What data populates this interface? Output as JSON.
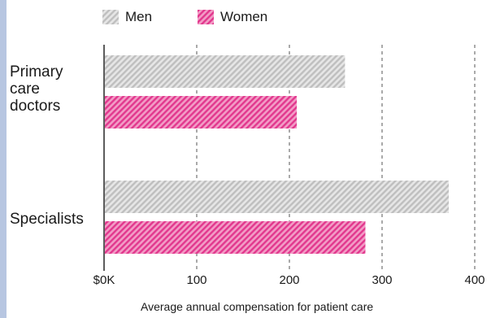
{
  "chart_data": {
    "type": "bar",
    "orientation": "horizontal",
    "categories": [
      "Primary\ncare\ndoctors",
      "Specialists"
    ],
    "series": [
      {
        "name": "Men",
        "values": [
          260,
          372
        ],
        "color": "#bfbfbf",
        "pattern": "diagonal-hatch"
      },
      {
        "name": "Women",
        "values": [
          208,
          282
        ],
        "color": "#e2388e",
        "pattern": "diagonal-hatch"
      }
    ],
    "xlabel": "Average annual compensation for patient care",
    "ylabel": "",
    "xlim": [
      0,
      400
    ],
    "xticks": [
      0,
      100,
      200,
      300,
      400
    ],
    "xtick_labels": [
      "$0K",
      "100",
      "200",
      "300",
      "400"
    ],
    "grid": "vertical dashed",
    "legend_position": "top"
  }
}
